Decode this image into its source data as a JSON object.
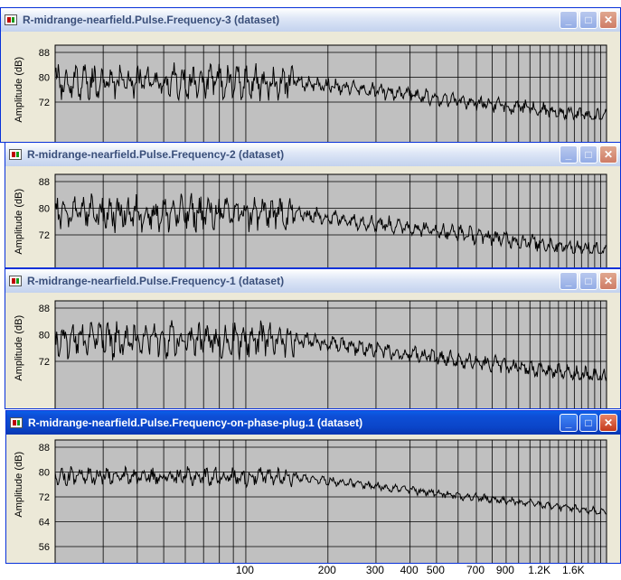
{
  "windows": [
    {
      "title": "R-midrange-nearfield.Pulse.Frequency-3 (dataset)",
      "ylabel": "Amplitude (dB)",
      "yticks": [
        "88",
        "80",
        "72"
      ],
      "active": false,
      "color": "#ece9d8"
    },
    {
      "title": "R-midrange-nearfield.Pulse.Frequency-2 (dataset)",
      "ylabel": "Amplitude (dB)",
      "yticks": [
        "88",
        "80",
        "72"
      ],
      "active": false,
      "color": "#ece9d8"
    },
    {
      "title": "R-midrange-nearfield.Pulse.Frequency-1 (dataset)",
      "ylabel": "Amplitude (dB)",
      "yticks": [
        "88",
        "80",
        "72"
      ],
      "active": false,
      "color": "#ece9d8"
    },
    {
      "title": "R-midrange-nearfield.Pulse.Frequency-on-phase-plug.1 (dataset)",
      "ylabel": "Amplitude (dB)",
      "yticks": [
        "88",
        "80",
        "72",
        "64",
        "56"
      ],
      "active": true,
      "color": "#0a4fd4"
    }
  ],
  "window_buttons": {
    "minimize": "_",
    "maximize": "□",
    "close": "✕"
  },
  "x_axis_labels": [
    "100",
    "200",
    "300",
    "400",
    "500",
    "700",
    "900",
    "1.2K",
    "1.6K"
  ],
  "colors": {
    "plot_background": "#c0c0c0",
    "grid": "#000000",
    "trace": "#000000",
    "active_title": "#0a4fd4"
  }
}
